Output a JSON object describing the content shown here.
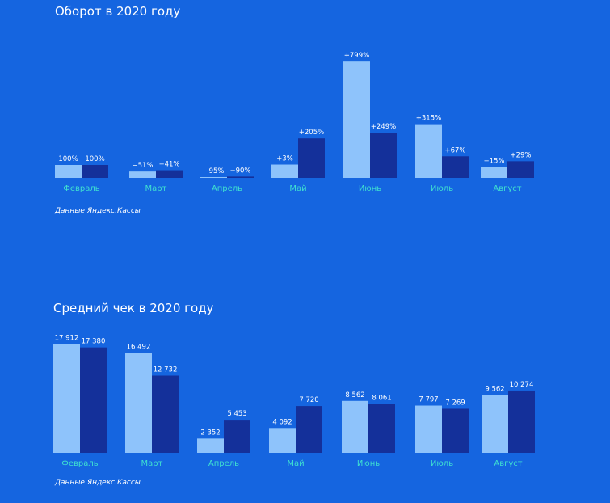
{
  "colors": {
    "background": "#1565e0",
    "series_light": "#8ec3fb",
    "series_dark": "#14309a",
    "category_label": "#3fe0d0",
    "text": "#ffffff"
  },
  "chart_data": [
    {
      "type": "bar",
      "title": "Оборот в 2020 году",
      "source": "Данные Яндекс.Кассы",
      "categories": [
        "Февраль",
        "Март",
        "Апрель",
        "Май",
        "Июнь",
        "Июль",
        "Август"
      ],
      "series": [
        {
          "values": [
            100,
            49,
            5,
            103,
            899,
            415,
            85
          ],
          "labels": [
            "100%",
            "−51%",
            "−95%",
            "+3%",
            "+799%",
            "+315%",
            "−15%"
          ]
        },
        {
          "values": [
            100,
            59,
            10,
            305,
            349,
            167,
            129
          ],
          "labels": [
            "100%",
            "−41%",
            "−90%",
            "+205%",
            "+249%",
            "+67%",
            "+29%"
          ]
        }
      ],
      "ylim": [
        0,
        1000
      ],
      "grid": false,
      "legend": "none"
    },
    {
      "type": "bar",
      "title": "Средний чек в 2020 году",
      "source": "Данные Яндекс.Кассы",
      "categories": [
        "Февраль",
        "Март",
        "Апрель",
        "Май",
        "Июнь",
        "Июль",
        "Август"
      ],
      "series": [
        {
          "values": [
            17912,
            16492,
            2352,
            4092,
            8562,
            7797,
            9562
          ],
          "labels": [
            "17 912",
            "16 492",
            "2 352",
            "4 092",
            "8 562",
            "7 797",
            "9 562"
          ]
        },
        {
          "values": [
            17380,
            12732,
            5453,
            7720,
            8061,
            7269,
            10274
          ],
          "labels": [
            "17 380",
            "12 732",
            "5 453",
            "7 720",
            "8 061",
            "7 269",
            "10 274"
          ]
        }
      ],
      "ylim": [
        0,
        20000
      ],
      "grid": false,
      "legend": "none"
    }
  ]
}
